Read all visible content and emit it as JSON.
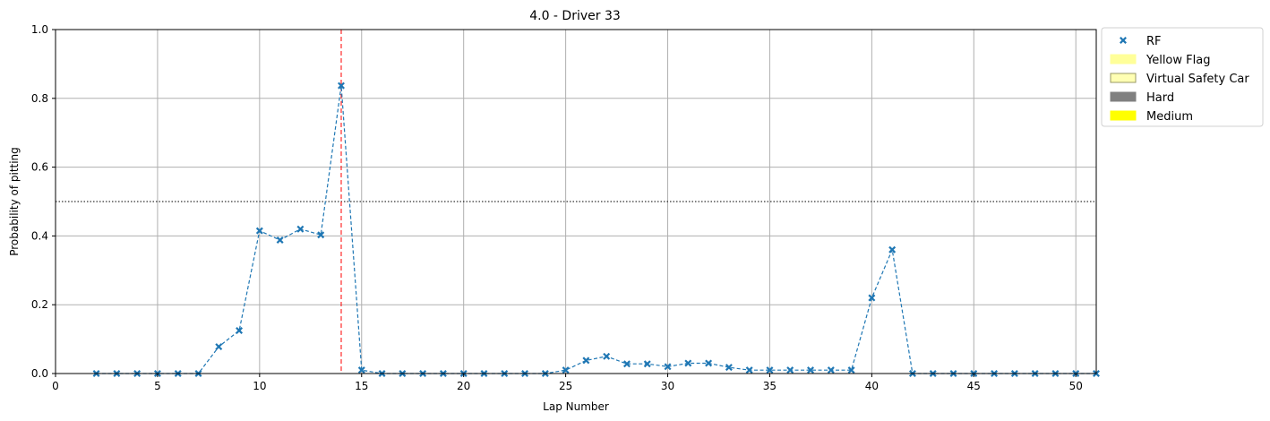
{
  "chart_data": {
    "type": "line",
    "title": "4.0 - Driver 33",
    "xlabel": "Lap Number",
    "ylabel": "Probability of pitting",
    "xlim": [
      0,
      51
    ],
    "ylim": [
      0,
      1.0
    ],
    "xticks": [
      0,
      5,
      10,
      15,
      20,
      25,
      30,
      35,
      40,
      45,
      50
    ],
    "yticks": [
      0.0,
      0.2,
      0.4,
      0.6,
      0.8,
      1.0
    ],
    "grid": true,
    "threshold": 0.5,
    "pit_lap": 14,
    "legend_position": "outside-top-right",
    "series": [
      {
        "name": "RF",
        "color": "#1f77b4",
        "marker": "x",
        "x": [
          2,
          3,
          4,
          5,
          6,
          7,
          8,
          9,
          10,
          11,
          12,
          13,
          14,
          15,
          16,
          17,
          18,
          19,
          20,
          21,
          22,
          23,
          24,
          25,
          26,
          27,
          28,
          29,
          30,
          31,
          32,
          33,
          34,
          35,
          36,
          37,
          38,
          39,
          40,
          41,
          42,
          43,
          44,
          45,
          46,
          47,
          48,
          49,
          50,
          51
        ],
        "y": [
          0,
          0,
          0,
          0,
          0,
          0,
          0.078,
          0.125,
          0.415,
          0.388,
          0.42,
          0.403,
          0.837,
          0.01,
          0,
          0,
          0,
          0,
          0,
          0,
          0,
          0,
          0,
          0.01,
          0.038,
          0.05,
          0.028,
          0.028,
          0.02,
          0.03,
          0.03,
          0.018,
          0.01,
          0.01,
          0.01,
          0.01,
          0.01,
          0.01,
          0.22,
          0.36,
          0,
          0,
          0,
          0,
          0,
          0,
          0,
          0,
          0,
          0
        ]
      }
    ],
    "legend": [
      {
        "label": "RF",
        "kind": "marker",
        "color": "#1f77b4"
      },
      {
        "label": "Yellow Flag",
        "kind": "patch",
        "color": "#ffff99",
        "edge": "#ffff99"
      },
      {
        "label": "Virtual Safety Car",
        "kind": "patch",
        "color": "#ffffb3",
        "edge": "#999966"
      },
      {
        "label": "Hard",
        "kind": "patch",
        "color": "#808080",
        "edge": "#808080"
      },
      {
        "label": "Medium",
        "kind": "patch",
        "color": "#ffff00",
        "edge": "#ffff00"
      }
    ]
  }
}
